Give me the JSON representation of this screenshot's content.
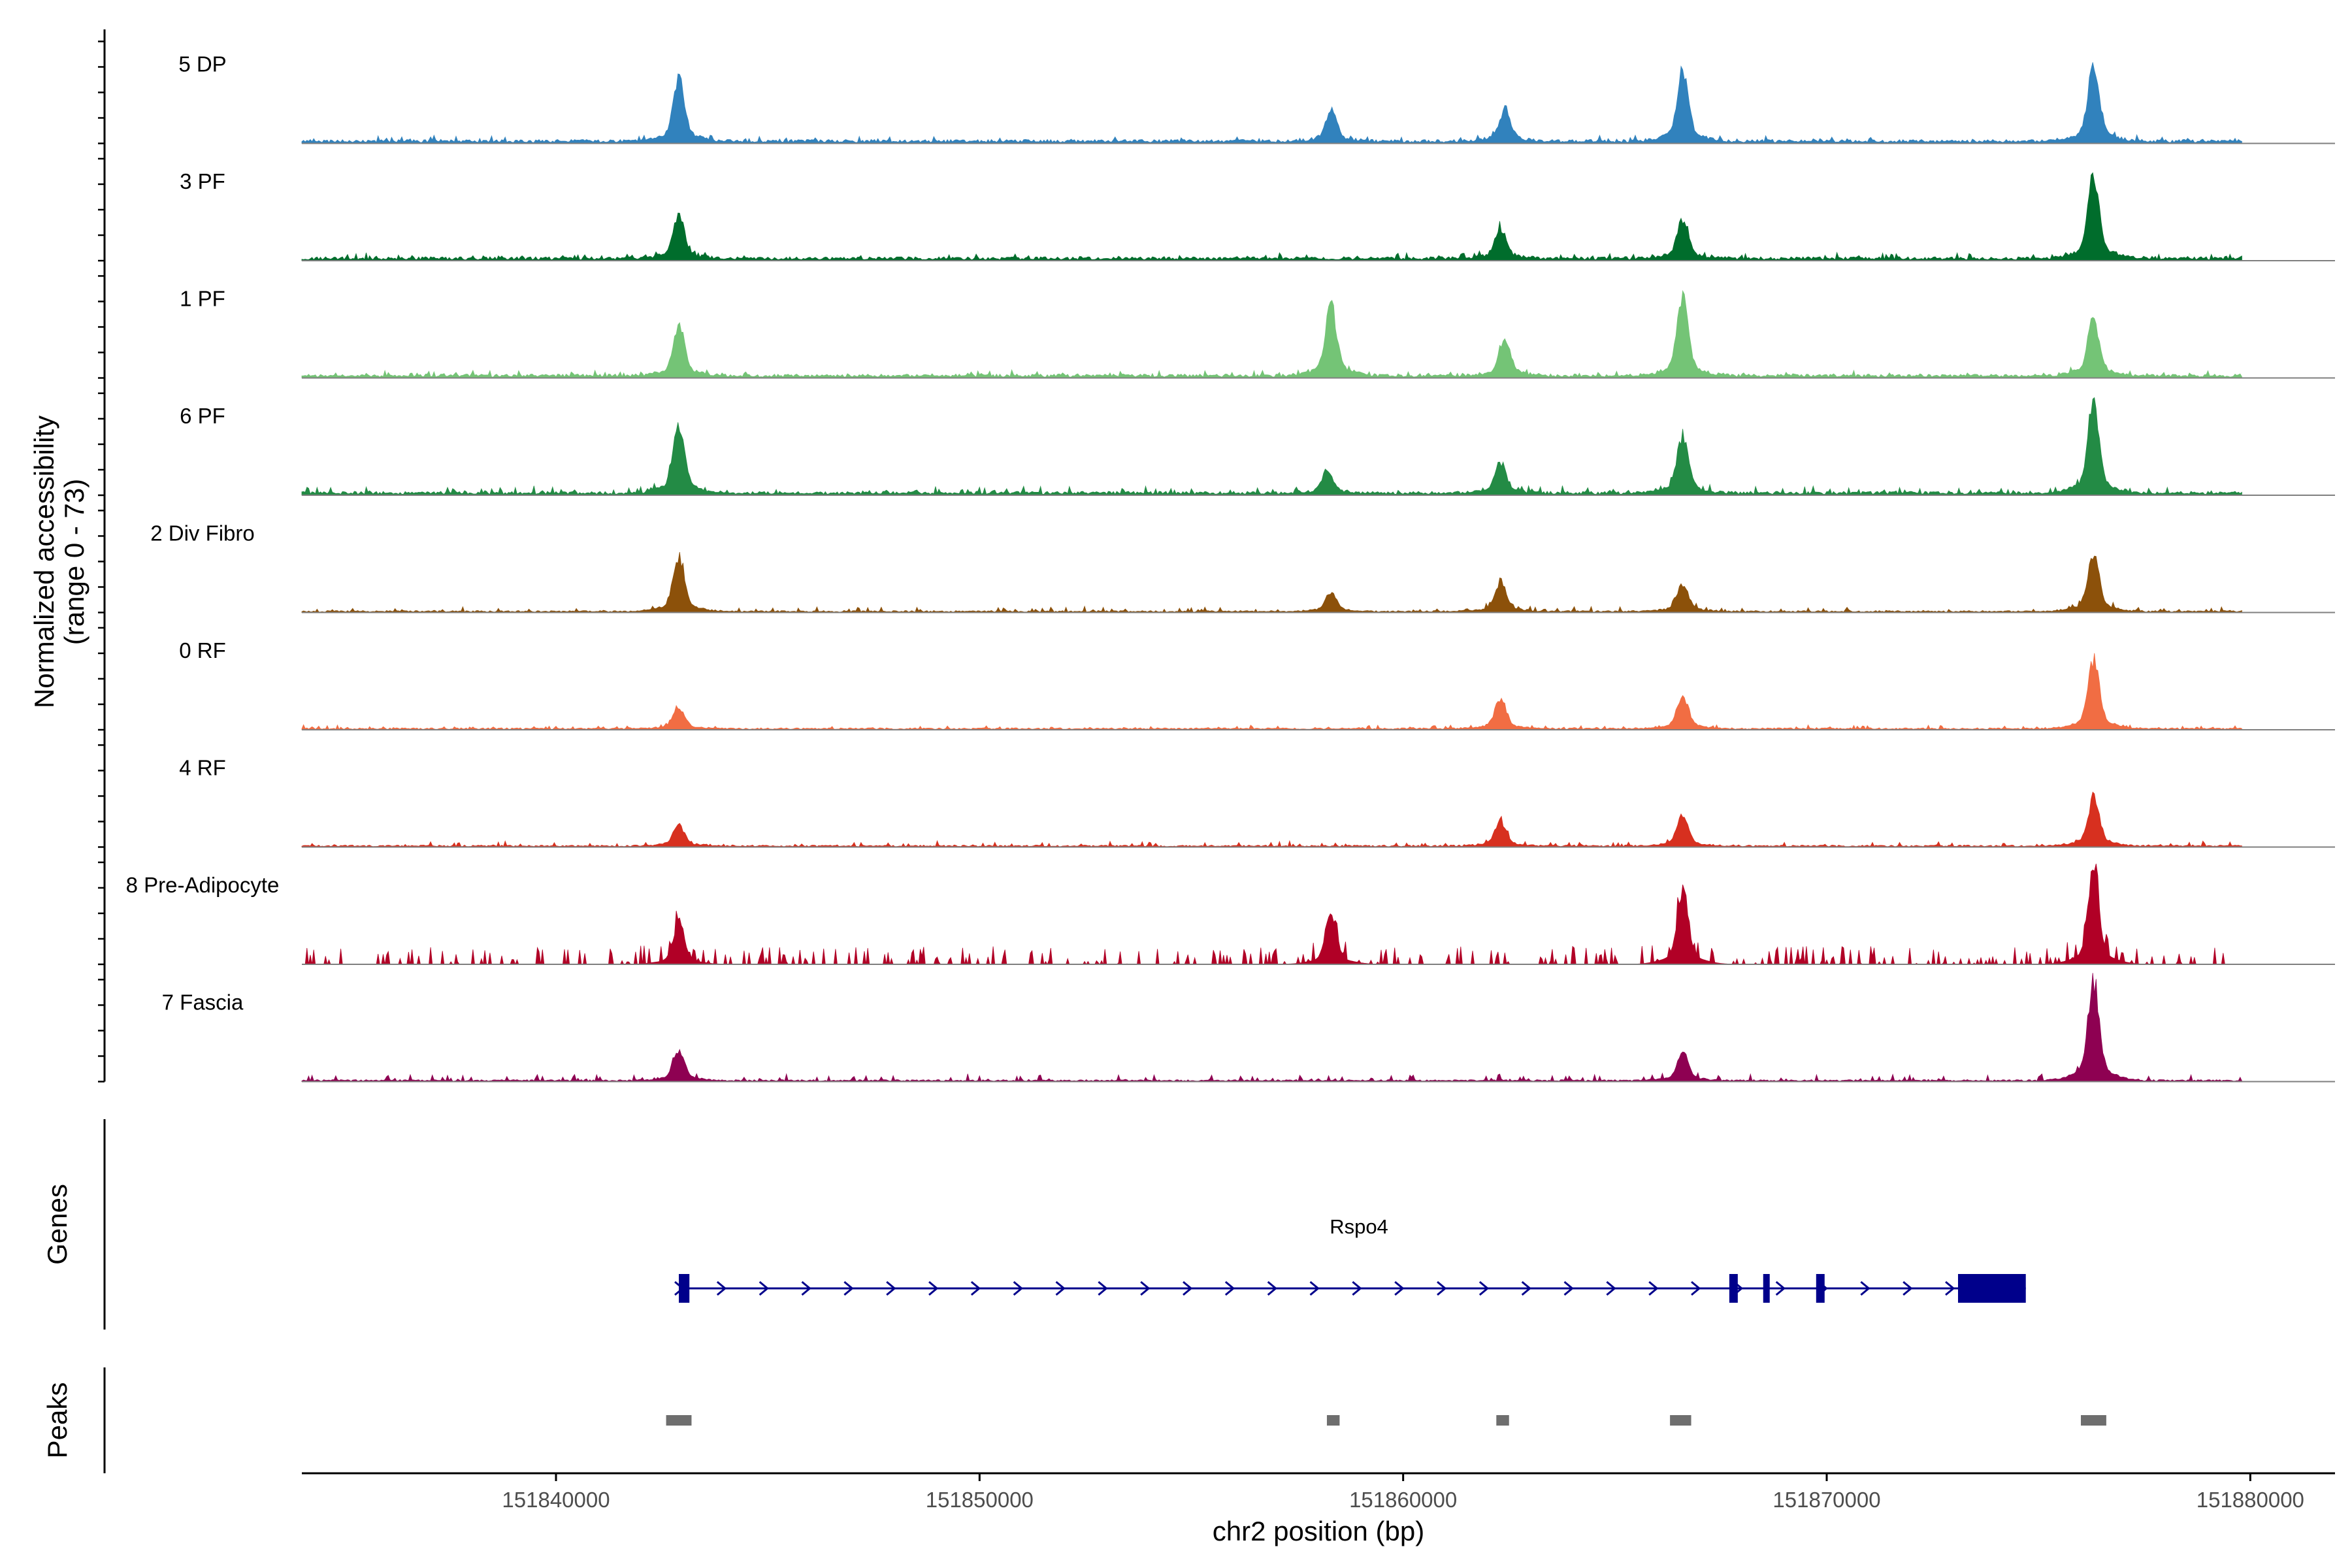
{
  "chart_data": {
    "type": "coverage",
    "chromosome": "chr2",
    "y_axis_title_line1": "Normalized accessibility",
    "y_axis_title_line2": "(range 0 - 73)",
    "y_range": [
      0,
      73
    ],
    "x_axis_title": "chr2 position (bp)",
    "x_ticks": [
      151840000,
      151850000,
      151860000,
      151870000,
      151880000
    ],
    "x_tick_labels": [
      "151840000",
      "151850000",
      "151860000",
      "151870000",
      "151880000"
    ],
    "xlim": [
      151834000,
      151882000
    ],
    "data_start": 151834000,
    "data_end": 151879800,
    "tracks": [
      {
        "name": "5 DP",
        "color": "#3182bd",
        "baseline": 2,
        "noise": 3,
        "spiky": false,
        "peaks": [
          [
            151842900,
            42
          ],
          [
            151858300,
            20
          ],
          [
            151862400,
            21
          ],
          [
            151866600,
            46
          ],
          [
            151876300,
            50
          ]
        ]
      },
      {
        "name": "3 PF",
        "color": "#006d2c",
        "baseline": 2,
        "noise": 3,
        "spiky": false,
        "peaks": [
          [
            151842900,
            28
          ],
          [
            151862300,
            20
          ],
          [
            151866600,
            26
          ],
          [
            151876300,
            55
          ]
        ]
      },
      {
        "name": "1 PF",
        "color": "#74c476",
        "baseline": 2,
        "noise": 3,
        "spiky": false,
        "peaks": [
          [
            151842900,
            34
          ],
          [
            151858300,
            46
          ],
          [
            151862400,
            24
          ],
          [
            151866600,
            52
          ],
          [
            151876300,
            38
          ]
        ]
      },
      {
        "name": "6 PF",
        "color": "#238b45",
        "baseline": 2,
        "noise": 4,
        "spiky": false,
        "peaks": [
          [
            151842900,
            46
          ],
          [
            151858200,
            15
          ],
          [
            151862300,
            20
          ],
          [
            151866600,
            38
          ],
          [
            151876300,
            60
          ]
        ]
      },
      {
        "name": "2 Div Fibro",
        "color": "#8c510a",
        "baseline": 1,
        "noise": 3,
        "spiky": false,
        "peaks": [
          [
            151842900,
            36
          ],
          [
            151858300,
            12
          ],
          [
            151862300,
            20
          ],
          [
            151866600,
            18
          ],
          [
            151876300,
            38
          ]
        ]
      },
      {
        "name": "0 RF",
        "color": "#f16d43",
        "baseline": 1,
        "noise": 2,
        "spiky": false,
        "peaks": [
          [
            151842900,
            14
          ],
          [
            151862300,
            20
          ],
          [
            151866600,
            22
          ],
          [
            151876300,
            46
          ]
        ]
      },
      {
        "name": "4 RF",
        "color": "#d7301f",
        "baseline": 1,
        "noise": 3,
        "spiky": false,
        "peaks": [
          [
            151842900,
            14
          ],
          [
            151862300,
            16
          ],
          [
            151866600,
            20
          ],
          [
            151876300,
            32
          ]
        ]
      },
      {
        "name": "8 Pre-Adipocyte",
        "color": "#b10026",
        "baseline": 0,
        "noise": 12,
        "spiky": true,
        "peaks": [
          [
            151842900,
            28
          ],
          [
            151858300,
            34
          ],
          [
            151866600,
            50
          ],
          [
            151876300,
            62
          ]
        ]
      },
      {
        "name": "7 Fascia",
        "color": "#8e0152",
        "baseline": 1,
        "noise": 4,
        "spiky": false,
        "peaks": [
          [
            151842900,
            20
          ],
          [
            151866600,
            18
          ],
          [
            151876300,
            66
          ]
        ]
      }
    ],
    "genes_panel_label": "Genes",
    "gene": {
      "name": "Rspo4",
      "strand": "+",
      "color": "#00008b",
      "start": 151842900,
      "end": 151874700,
      "exons": [
        [
          151842900,
          151843150
        ],
        [
          151867700,
          151867900
        ],
        [
          151868500,
          151868650
        ],
        [
          151869750,
          151869950
        ],
        [
          151873100,
          151874700
        ]
      ]
    },
    "peaks_panel_label": "Peaks",
    "peak_color": "#6e6e6e",
    "peak_regions": [
      [
        151842600,
        151843200
      ],
      [
        151858200,
        151858500
      ],
      [
        151862200,
        151862500
      ],
      [
        151866300,
        151866800
      ],
      [
        151876000,
        151876600
      ]
    ]
  }
}
